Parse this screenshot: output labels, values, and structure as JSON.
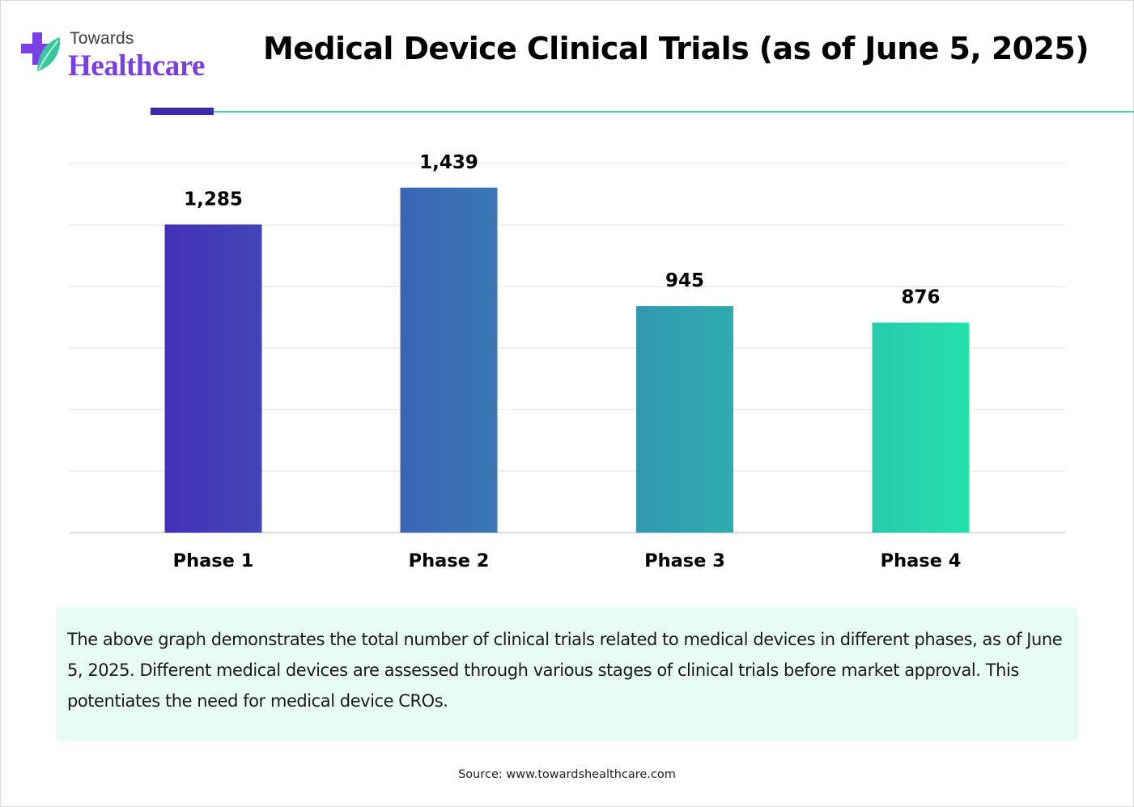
{
  "logo": {
    "line1": "Towards",
    "line2": "Healthcare"
  },
  "title": "Medical Device Clinical Trials (as of June 5, 2025)",
  "colors": {
    "brand_purple": "#7a3fe0",
    "accent_navy": "#3b2aa8",
    "accent_teal": "#3cd6ae",
    "bar_start": "#4530b8",
    "bar_end": "#24e0aa",
    "desc_bg": "#e8fbf4"
  },
  "chart_data": {
    "type": "bar",
    "title": "Medical Device Clinical Trials (as of June 5, 2025)",
    "categories": [
      "Phase 1",
      "Phase 2",
      "Phase 3",
      "Phase 4"
    ],
    "values": [
      1285,
      1439,
      945,
      876
    ],
    "value_labels": [
      "1,285",
      "1,439",
      "945",
      "876"
    ],
    "xlabel": "",
    "ylabel": "",
    "ylim": [
      0,
      1800
    ],
    "grid": true,
    "gridline_count": 7,
    "legend": "none"
  },
  "description": "The above graph demonstrates the total number of clinical trials related to medical devices in different phases, as of June 5, 2025. Different medical devices are assessed through various stages of clinical trials before market approval. This potentiates the need for medical device CROs.",
  "source": "Source: www.towardshealthcare.com"
}
